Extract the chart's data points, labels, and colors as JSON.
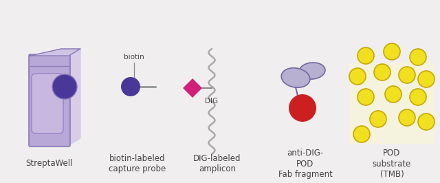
{
  "bg_color": "#f0eeee",
  "labels": {
    "streptawell": "StreptaWell",
    "biotin_probe": "biotin-labeled\ncapture probe",
    "dig_amplicon": "DIG-labeled\namplicon",
    "anti_dig": "anti-DIG-\nPOD\nFab fragment",
    "pod_substrate": "POD\nsubstrate\n(TMB)"
  },
  "colors": {
    "well_body": "#c0b0e0",
    "well_body_dark": "#8878b8",
    "well_front": "#b8a8d8",
    "well_side": "#d8cce8",
    "well_top": "#d0c4e4",
    "well_oval_bg": "#c8b8e0",
    "well_oval": "#5040a0",
    "well_oval_outline": "#9880c8",
    "well_circle": "#4a3898",
    "well_line": "#9080b8",
    "biotin_ball": "#4a3898",
    "dig_diamond": "#d0207a",
    "probe_line": "#888888",
    "wavy_line": "#aaaaaa",
    "antibody_body": "#b8b0d0",
    "antibody_outline": "#7068a0",
    "antibody_red": "#cc2020",
    "tmb_ball": "#f0e020",
    "tmb_outline": "#c8a800",
    "tmb_bg": "#f8f4d8",
    "label_color": "#444444"
  }
}
